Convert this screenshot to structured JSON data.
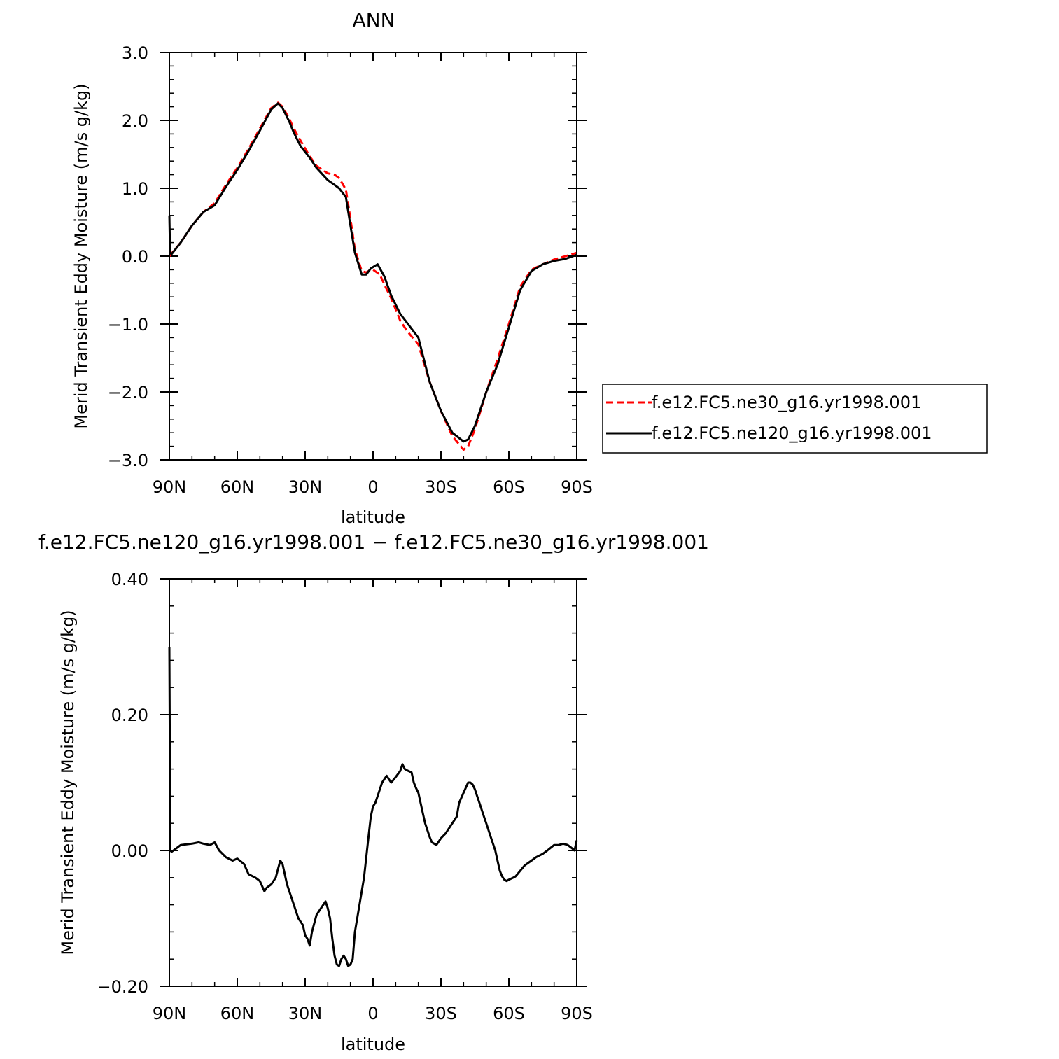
{
  "chart_data": [
    {
      "type": "line",
      "title": "ANN",
      "xlabel": "latitude",
      "ylabel": "Merid Transient Eddy Moisture (m/s g/kg)",
      "xlim": [
        90,
        -90
      ],
      "ylim": [
        -3.0,
        3.0
      ],
      "x_ticks": [
        90,
        60,
        30,
        0,
        -30,
        -60,
        -90
      ],
      "x_tick_labels": [
        "90N",
        "60N",
        "30N",
        "0",
        "30S",
        "60S",
        "90S"
      ],
      "y_ticks": [
        3.0,
        2.0,
        1.0,
        0.0,
        -1.0,
        -2.0,
        -3.0
      ],
      "y_tick_labels": [
        "3.0",
        "2.0",
        "1.0",
        "0.0",
        "−1.0",
        "−2.0",
        "−3.0"
      ],
      "grid": false,
      "legend_position": "right",
      "series": [
        {
          "name": "f.e12.FC5.ne30_g16.yr1998.001",
          "color": "#ff0000",
          "dash": "dashed",
          "x": [
            90,
            89,
            85,
            80,
            75,
            70,
            65,
            60,
            55,
            50,
            45,
            42,
            40,
            37,
            35,
            32,
            28,
            25,
            20,
            17,
            15,
            12,
            10,
            8,
            5,
            3,
            1,
            0,
            -3,
            -5,
            -8,
            -12,
            -15,
            -20,
            -25,
            -30,
            -35,
            -40,
            -42,
            -45,
            -50,
            -55,
            -60,
            -65,
            -70,
            -75,
            -80,
            -85,
            -90
          ],
          "y": [
            0.0,
            0.04,
            0.2,
            0.45,
            0.65,
            0.78,
            1.05,
            1.3,
            1.58,
            1.88,
            2.18,
            2.26,
            2.2,
            2.02,
            1.88,
            1.7,
            1.47,
            1.33,
            1.22,
            1.2,
            1.15,
            0.98,
            0.55,
            0.1,
            -0.22,
            -0.24,
            -0.2,
            -0.2,
            -0.27,
            -0.42,
            -0.62,
            -0.95,
            -1.1,
            -1.3,
            -1.85,
            -2.28,
            -2.65,
            -2.85,
            -2.8,
            -2.55,
            -2.0,
            -1.52,
            -1.0,
            -0.45,
            -0.2,
            -0.12,
            -0.05,
            0.0,
            0.05
          ]
        },
        {
          "name": "f.e12.FC5.ne120_g16.yr1998.001",
          "color": "#000000",
          "dash": "solid",
          "x": [
            90,
            89.7,
            89,
            85,
            80,
            75,
            70,
            65,
            60,
            55,
            50,
            45,
            42,
            40,
            37,
            35,
            32,
            28,
            25,
            20,
            17,
            15,
            12,
            10,
            8,
            5,
            3,
            1,
            -2,
            -5,
            -8,
            -12,
            -15,
            -20,
            -25,
            -30,
            -35,
            -40,
            -42,
            -45,
            -50,
            -55,
            -60,
            -65,
            -70,
            -75,
            -80,
            -85,
            -90
          ],
          "y": [
            0.6,
            0.05,
            0.03,
            0.2,
            0.45,
            0.65,
            0.75,
            1.02,
            1.27,
            1.55,
            1.85,
            2.16,
            2.25,
            2.18,
            1.98,
            1.82,
            1.62,
            1.45,
            1.3,
            1.12,
            1.05,
            1.0,
            0.87,
            0.45,
            0.05,
            -0.27,
            -0.27,
            -0.18,
            -0.12,
            -0.3,
            -0.58,
            -0.85,
            -0.98,
            -1.2,
            -1.85,
            -2.28,
            -2.6,
            -2.73,
            -2.7,
            -2.5,
            -2.0,
            -1.6,
            -1.05,
            -0.5,
            -0.22,
            -0.12,
            -0.07,
            -0.04,
            0.02
          ]
        }
      ]
    },
    {
      "type": "line",
      "title": "f.e12.FC5.ne120_g16.yr1998.001 − f.e12.FC5.ne30_g16.yr1998.001",
      "xlabel": "latitude",
      "ylabel": "Merid Transient Eddy Moisture (m/s g/kg)",
      "xlim": [
        90,
        -90
      ],
      "ylim": [
        -0.2,
        0.4
      ],
      "x_ticks": [
        90,
        60,
        30,
        0,
        -30,
        -60,
        -90
      ],
      "x_tick_labels": [
        "90N",
        "60N",
        "30N",
        "0",
        "30S",
        "60S",
        "90S"
      ],
      "y_ticks": [
        0.4,
        0.2,
        0.0,
        -0.2
      ],
      "y_tick_labels": [
        "0.40",
        "0.20",
        "0.00",
        "−0.20"
      ],
      "grid": false,
      "series": [
        {
          "color": "#000000",
          "dash": "solid",
          "x": [
            90,
            89.6,
            89,
            85,
            80,
            77,
            75,
            72,
            70,
            68,
            65,
            62,
            60,
            57,
            55,
            52,
            50,
            48,
            47,
            45,
            43,
            41,
            40,
            38,
            36,
            33,
            31,
            30,
            29,
            28,
            27,
            25,
            23,
            21,
            20,
            19,
            18,
            17,
            16,
            15,
            14,
            13,
            12,
            11,
            10,
            9,
            8,
            6,
            4,
            2,
            1,
            0,
            -1,
            -2,
            -4,
            -6,
            -7,
            -8,
            -10,
            -12,
            -13,
            -14,
            -15,
            -17,
            -18,
            -19,
            -20,
            -21,
            -22,
            -23,
            -24,
            -25,
            -26,
            -27,
            -28,
            -30,
            -32,
            -35,
            -37,
            -38,
            -40,
            -42,
            -43,
            -44,
            -45,
            -46,
            -47,
            -48,
            -49,
            -50,
            -52,
            -54,
            -55,
            -56,
            -57,
            -58,
            -59,
            -60,
            -62,
            -63,
            -65,
            -67,
            -70,
            -72,
            -75,
            -77,
            -80,
            -82,
            -84,
            -86,
            -88,
            -89,
            -90
          ],
          "y": [
            0.3,
            0.0,
            -0.002,
            0.008,
            0.01,
            0.012,
            0.01,
            0.008,
            0.012,
            0.0,
            -0.01,
            -0.015,
            -0.012,
            -0.02,
            -0.035,
            -0.04,
            -0.045,
            -0.06,
            -0.055,
            -0.05,
            -0.04,
            -0.015,
            -0.02,
            -0.05,
            -0.07,
            -0.1,
            -0.11,
            -0.125,
            -0.13,
            -0.14,
            -0.12,
            -0.095,
            -0.085,
            -0.075,
            -0.085,
            -0.1,
            -0.13,
            -0.155,
            -0.168,
            -0.17,
            -0.16,
            -0.155,
            -0.16,
            -0.17,
            -0.168,
            -0.16,
            -0.12,
            -0.08,
            -0.04,
            0.02,
            0.05,
            0.065,
            0.07,
            0.08,
            0.1,
            0.11,
            0.105,
            0.1,
            0.108,
            0.117,
            0.127,
            0.12,
            0.118,
            0.115,
            0.1,
            0.092,
            0.085,
            0.07,
            0.055,
            0.04,
            0.03,
            0.02,
            0.012,
            0.01,
            0.008,
            0.018,
            0.025,
            0.04,
            0.05,
            0.07,
            0.085,
            0.1,
            0.1,
            0.097,
            0.09,
            0.08,
            0.07,
            0.06,
            0.05,
            0.04,
            0.02,
            0.0,
            -0.015,
            -0.03,
            -0.038,
            -0.043,
            -0.045,
            -0.043,
            -0.04,
            -0.038,
            -0.03,
            -0.022,
            -0.015,
            -0.01,
            -0.005,
            0.0,
            0.008,
            0.008,
            0.01,
            0.008,
            0.003,
            0.0,
            0.015
          ]
        }
      ]
    }
  ]
}
